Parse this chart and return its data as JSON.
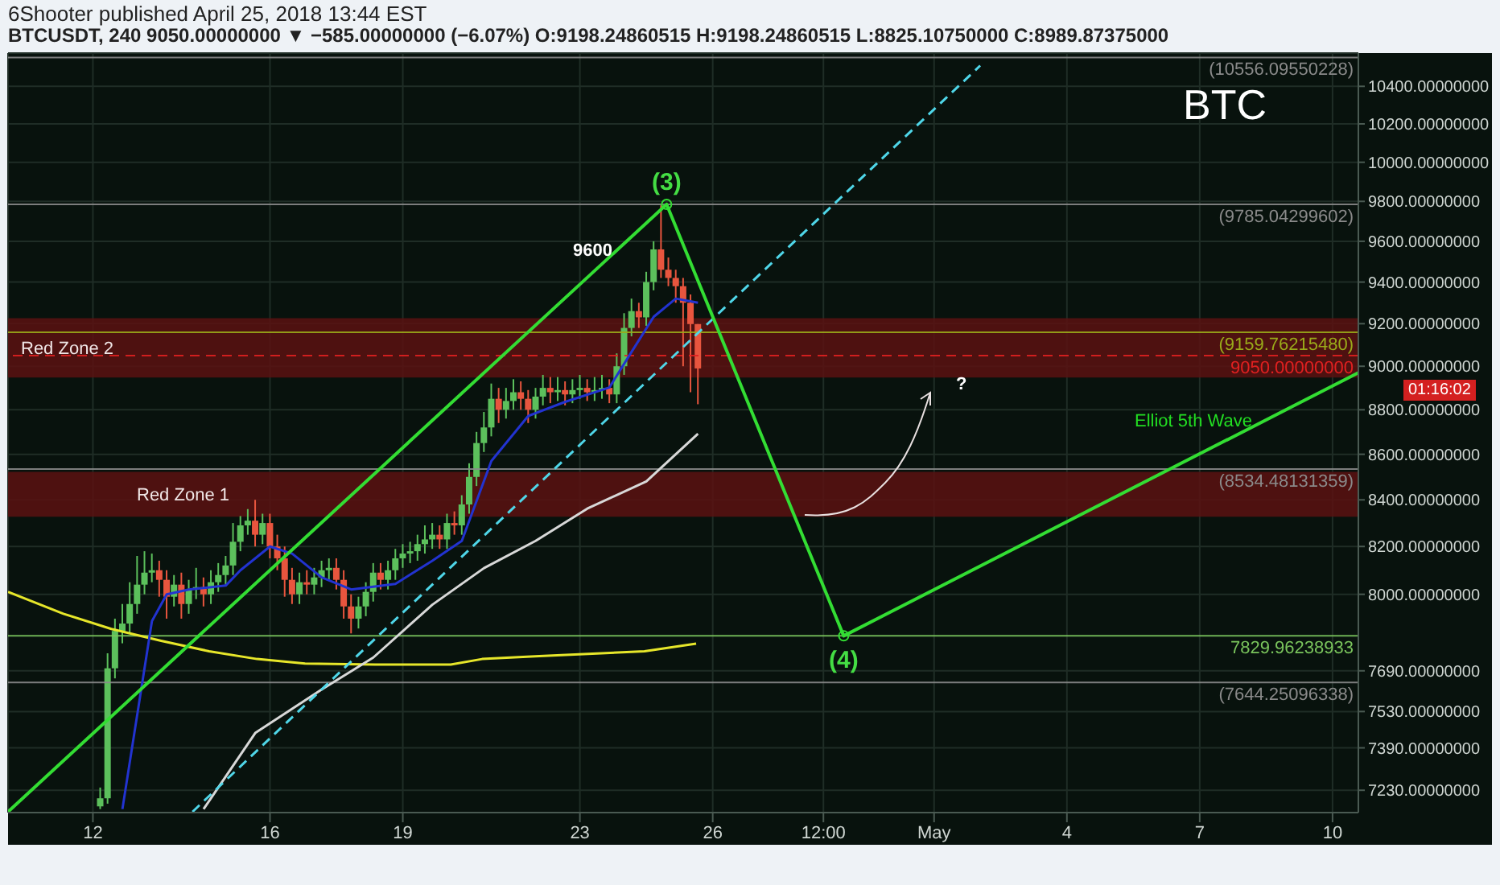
{
  "chart_data": {
    "type": "candlestick",
    "title": "6Shooter published April 25, 2018 13:44 EST",
    "subtitle": "BTCUSDT, 240 9050.00000000 ▼ −585.00000000 (−6.07%) O:9198.24860515 H:9198.24860515 L:8825.10750000 C:8989.87375000",
    "x": [
      "2018-04-12T04:00",
      "2018-04-12T08:00",
      "2018-04-12T12:00",
      "2018-04-12T16:00",
      "2018-04-12T20:00",
      "2018-04-13T00:00",
      "2018-04-13T04:00",
      "2018-04-13T08:00",
      "2018-04-13T12:00",
      "2018-04-13T16:00",
      "2018-04-13T20:00",
      "2018-04-14T00:00",
      "2018-04-14T04:00",
      "2018-04-14T08:00",
      "2018-04-14T12:00",
      "2018-04-14T16:00",
      "2018-04-14T20:00",
      "2018-04-15T00:00",
      "2018-04-15T04:00",
      "2018-04-15T08:00",
      "2018-04-15T12:00",
      "2018-04-15T16:00",
      "2018-04-15T20:00",
      "2018-04-16T00:00",
      "2018-04-16T04:00",
      "2018-04-16T08:00",
      "2018-04-16T12:00",
      "2018-04-16T16:00",
      "2018-04-16T20:00",
      "2018-04-17T00:00",
      "2018-04-17T04:00",
      "2018-04-17T08:00",
      "2018-04-17T12:00",
      "2018-04-17T16:00",
      "2018-04-17T20:00",
      "2018-04-18T00:00",
      "2018-04-18T04:00",
      "2018-04-18T08:00",
      "2018-04-18T12:00",
      "2018-04-18T16:00",
      "2018-04-18T20:00",
      "2018-04-19T00:00",
      "2018-04-19T04:00",
      "2018-04-19T08:00",
      "2018-04-19T12:00",
      "2018-04-19T16:00",
      "2018-04-19T20:00",
      "2018-04-20T00:00",
      "2018-04-20T04:00",
      "2018-04-20T08:00",
      "2018-04-20T12:00",
      "2018-04-20T16:00",
      "2018-04-20T20:00",
      "2018-04-21T00:00",
      "2018-04-21T04:00",
      "2018-04-21T08:00",
      "2018-04-21T12:00",
      "2018-04-21T16:00",
      "2018-04-21T20:00",
      "2018-04-22T00:00",
      "2018-04-22T04:00",
      "2018-04-22T08:00",
      "2018-04-22T12:00",
      "2018-04-22T16:00",
      "2018-04-22T20:00",
      "2018-04-23T00:00",
      "2018-04-23T04:00",
      "2018-04-23T08:00",
      "2018-04-23T12:00",
      "2018-04-23T16:00",
      "2018-04-23T20:00",
      "2018-04-24T00:00",
      "2018-04-24T04:00",
      "2018-04-24T08:00",
      "2018-04-24T12:00",
      "2018-04-24T16:00",
      "2018-04-24T20:00",
      "2018-04-25T00:00",
      "2018-04-25T04:00",
      "2018-04-25T08:00",
      "2018-04-25T12:00",
      "2018-04-25T16:00"
    ],
    "ohlc": [
      [
        7170,
        7240,
        7160,
        7200
      ],
      [
        7200,
        7760,
        7180,
        7700
      ],
      [
        7700,
        7900,
        7660,
        7850
      ],
      [
        7850,
        7960,
        7800,
        7880
      ],
      [
        7880,
        8050,
        7840,
        7960
      ],
      [
        7960,
        8160,
        7920,
        8040
      ],
      [
        8040,
        8180,
        8000,
        8090
      ],
      [
        8090,
        8170,
        8050,
        8100
      ],
      [
        8100,
        8140,
        7990,
        8060
      ],
      [
        8060,
        8100,
        7900,
        7990
      ],
      [
        7990,
        8080,
        7950,
        8040
      ],
      [
        8040,
        8090,
        7900,
        7960
      ],
      [
        7960,
        8060,
        7920,
        8020
      ],
      [
        8020,
        8110,
        7980,
        8030
      ],
      [
        8030,
        8070,
        7950,
        8000
      ],
      [
        8000,
        8100,
        7960,
        8050
      ],
      [
        8050,
        8130,
        8010,
        8080
      ],
      [
        8080,
        8160,
        8040,
        8120
      ],
      [
        8120,
        8300,
        8080,
        8220
      ],
      [
        8220,
        8330,
        8180,
        8290
      ],
      [
        8290,
        8360,
        8250,
        8310
      ],
      [
        8310,
        8400,
        8200,
        8250
      ],
      [
        8250,
        8340,
        8210,
        8300
      ],
      [
        8300,
        8340,
        8150,
        8200
      ],
      [
        8200,
        8250,
        8100,
        8150
      ],
      [
        8150,
        8200,
        7990,
        8060
      ],
      [
        8060,
        8110,
        7960,
        8000
      ],
      [
        8000,
        8090,
        7960,
        8050
      ],
      [
        8050,
        8100,
        8000,
        8040
      ],
      [
        8040,
        8110,
        8000,
        8070
      ],
      [
        8070,
        8140,
        8030,
        8100
      ],
      [
        8100,
        8150,
        8060,
        8110
      ],
      [
        8110,
        8150,
        8020,
        8060
      ],
      [
        8060,
        8100,
        7900,
        7950
      ],
      [
        7950,
        8000,
        7840,
        7900
      ],
      [
        7900,
        7990,
        7860,
        7950
      ],
      [
        7950,
        8050,
        7910,
        8010
      ],
      [
        8010,
        8130,
        7970,
        8090
      ],
      [
        8090,
        8130,
        8020,
        8060
      ],
      [
        8060,
        8140,
        8020,
        8100
      ],
      [
        8100,
        8190,
        8060,
        8150
      ],
      [
        8150,
        8210,
        8110,
        8170
      ],
      [
        8170,
        8220,
        8130,
        8180
      ],
      [
        8180,
        8250,
        8140,
        8210
      ],
      [
        8210,
        8290,
        8170,
        8230
      ],
      [
        8230,
        8300,
        8190,
        8250
      ],
      [
        8250,
        8290,
        8190,
        8230
      ],
      [
        8230,
        8340,
        8190,
        8300
      ],
      [
        8300,
        8350,
        8250,
        8290
      ],
      [
        8290,
        8420,
        8250,
        8380
      ],
      [
        8380,
        8560,
        8340,
        8500
      ],
      [
        8500,
        8700,
        8460,
        8650
      ],
      [
        8650,
        8790,
        8610,
        8720
      ],
      [
        8720,
        8920,
        8680,
        8850
      ],
      [
        8850,
        8900,
        8740,
        8800
      ],
      [
        8800,
        8900,
        8760,
        8840
      ],
      [
        8840,
        8940,
        8800,
        8880
      ],
      [
        8880,
        8930,
        8800,
        8850
      ],
      [
        8850,
        8890,
        8740,
        8800
      ],
      [
        8800,
        8900,
        8760,
        8860
      ],
      [
        8860,
        8960,
        8820,
        8900
      ],
      [
        8900,
        8950,
        8830,
        8880
      ],
      [
        8880,
        8950,
        8840,
        8890
      ],
      [
        8890,
        8930,
        8820,
        8870
      ],
      [
        8870,
        8940,
        8830,
        8890
      ],
      [
        8890,
        8960,
        8850,
        8900
      ],
      [
        8900,
        8940,
        8840,
        8880
      ],
      [
        8880,
        8950,
        8840,
        8890
      ],
      [
        8890,
        8960,
        8850,
        8900
      ],
      [
        8900,
        8940,
        8830,
        8870
      ],
      [
        8870,
        9060,
        8830,
        9000
      ],
      [
        9000,
        9250,
        8960,
        9180
      ],
      [
        9180,
        9320,
        9140,
        9260
      ],
      [
        9260,
        9300,
        9180,
        9230
      ],
      [
        9230,
        9450,
        9190,
        9400
      ],
      [
        9400,
        9600,
        9360,
        9560
      ],
      [
        9560,
        9780,
        9420,
        9460
      ],
      [
        9460,
        9520,
        9380,
        9420
      ],
      [
        9420,
        9460,
        9300,
        9380
      ],
      [
        9380,
        9420,
        9000,
        9300
      ],
      [
        9300,
        9340,
        8880,
        9198.25
      ],
      [
        9198.24860515,
        9198.24860515,
        8825.1075,
        8989.87375
      ]
    ],
    "colors": [
      "#5cc05c",
      "#5cc05c",
      "#5cc05c",
      "#5cc05c",
      "#5cc05c",
      "#5cc05c",
      "#5cc05c",
      "#5cc05c",
      "#e8553e",
      "#e8553e",
      "#5cc05c",
      "#e8553e",
      "#5cc05c",
      "#5cc05c",
      "#e8553e",
      "#5cc05c",
      "#5cc05c",
      "#5cc05c",
      "#5cc05c",
      "#5cc05c",
      "#5cc05c",
      "#e8553e",
      "#5cc05c",
      "#e8553e",
      "#e8553e",
      "#e8553e",
      "#e8553e",
      "#5cc05c",
      "#e8553e",
      "#5cc05c",
      "#5cc05c",
      "#5cc05c",
      "#e8553e",
      "#e8553e",
      "#e8553e",
      "#5cc05c",
      "#5cc05c",
      "#5cc05c",
      "#e8553e",
      "#5cc05c",
      "#5cc05c",
      "#5cc05c",
      "#5cc05c",
      "#5cc05c",
      "#5cc05c",
      "#5cc05c",
      "#e8553e",
      "#5cc05c",
      "#e8553e",
      "#5cc05c",
      "#5cc05c",
      "#5cc05c",
      "#5cc05c",
      "#5cc05c",
      "#e8553e",
      "#5cc05c",
      "#5cc05c",
      "#e8553e",
      "#e8553e",
      "#5cc05c",
      "#5cc05c",
      "#e8553e",
      "#5cc05c",
      "#e8553e",
      "#5cc05c",
      "#5cc05c",
      "#e8553e",
      "#5cc05c",
      "#5cc05c",
      "#e8553e",
      "#5cc05c",
      "#5cc05c",
      "#5cc05c",
      "#e8553e",
      "#5cc05c",
      "#5cc05c",
      "#e8553e",
      "#e8553e",
      "#e8553e",
      "#e8553e",
      "#e8553e",
      "#e8553e"
    ],
    "series": [
      {
        "type": "line",
        "color": "#e6e62a",
        "x": [
          "2018-04-10T02:00",
          "2018-04-11T08:00",
          "2018-04-12T10:00",
          "2018-04-13T13:00",
          "2018-04-14T15:00",
          "2018-04-15T17:00",
          "2018-04-16T19:00",
          "2018-04-18T09:00",
          "2018-04-20T02:00",
          "2018-04-20T19:00",
          "2018-04-22T02:00",
          "2018-04-24T11:00",
          "2018-04-25T15:00"
        ],
        "values": [
          8010,
          7920,
          7858,
          7810,
          7768,
          7737,
          7719,
          7715,
          7715,
          7737,
          7749,
          7768,
          7799
        ]
      },
      {
        "type": "line",
        "color": "#d8d8d8",
        "x": [
          "2018-04-14T12:00",
          "2018-04-15T16:00",
          "2018-04-17T04:00",
          "2018-04-18T08:00",
          "2018-04-19T16:00",
          "2018-04-20T20:00",
          "2018-04-22T00:00",
          "2018-04-23T04:00",
          "2018-04-24T12:00",
          "2018-04-25T16:00"
        ],
        "values": [
          7160,
          7447,
          7616,
          7743,
          7957,
          8109,
          8224,
          8362,
          8480,
          8692
        ]
      },
      {
        "type": "line",
        "color": "#2233d0",
        "x": [
          "2018-04-12T16:00",
          "2018-04-13T08:00",
          "2018-04-13T16:00",
          "2018-04-14T04:00",
          "2018-04-15T00:00",
          "2018-04-15T08:00",
          "2018-04-16T00:00",
          "2018-04-16T12:00",
          "2018-04-17T04:00",
          "2018-04-17T20:00",
          "2018-04-18T20:00",
          "2018-04-19T16:00",
          "2018-04-20T08:00",
          "2018-04-21T00:00",
          "2018-04-21T20:00",
          "2018-04-22T16:00",
          "2018-04-23T16:00",
          "2018-04-24T04:00",
          "2018-04-24T16:00",
          "2018-04-25T04:00",
          "2018-04-25T16:00"
        ],
        "values": [
          7160,
          7890,
          8000,
          8020,
          8036,
          8100,
          8200,
          8170,
          8070,
          8020,
          8043,
          8140,
          8224,
          8570,
          8772,
          8836,
          8902,
          9067,
          9233,
          9320,
          9300
        ]
      },
      {
        "type": "line",
        "color": "#4fd6e8",
        "line_style": "dashed",
        "x": [
          "2018-04-14T06:00",
          "2018-05-02T01:00"
        ],
        "values": [
          7150,
          10512
        ]
      },
      {
        "type": "line",
        "color": "#33dd33",
        "x": [
          "2018-04-10T02:00",
          "2018-04-24T23:00",
          "2018-04-28T23:00",
          "2018-05-10T14:00"
        ],
        "values": [
          7150,
          9785.04299602,
          7829.96238933,
          8970
        ]
      }
    ],
    "bands": [
      {
        "axis": "y",
        "from": 8948,
        "to": 9226,
        "label": "Red Zone 2",
        "color": "#5a1212"
      },
      {
        "axis": "y",
        "from": 8327,
        "to": 8522,
        "label": "Red Zone 1",
        "color": "#5a1212"
      }
    ],
    "ref_lines": [
      {
        "axis": "y",
        "value": 10556.09550228,
        "label": "(10556.09550228)",
        "color": "#8a8a8a"
      },
      {
        "axis": "y",
        "value": 9785.04299602,
        "label": "(9785.04299602)",
        "color": "#8a8a8a"
      },
      {
        "axis": "y",
        "value": 9159.7621548,
        "label": "(9159.76215480)",
        "color": "#9aaa1a"
      },
      {
        "axis": "y",
        "value": 9050,
        "label": "9050.00000000",
        "color": "#e02020",
        "line_style": "dashed"
      },
      {
        "axis": "y",
        "value": 8534.48131359,
        "label": "(8534.48131359)",
        "color": "#8a8a8a"
      },
      {
        "axis": "y",
        "value": 7829.96238933,
        "label": "7829.96238933",
        "color": "#7ac45c"
      },
      {
        "axis": "y",
        "value": 7644.25096338,
        "label": "(7644.25096338)",
        "color": "#8a8a8a"
      }
    ],
    "annotations": [
      {
        "text": "(3)",
        "x": "2018-04-24T23:00",
        "y": 9785.04299602
      },
      {
        "text": "(4)",
        "x": "2018-04-28T23:00",
        "y": 7829.96238933
      },
      "9600",
      "?",
      "Elliot 5th Wave",
      "BTC",
      "01:16:02"
    ],
    "log": true,
    "grid": true,
    "xlim": [
      "2018-04-10T02:00",
      "2018-05-10T14:00"
    ],
    "xticks": [
      {
        "value": "2018-04-12",
        "label": "12"
      },
      {
        "value": "2018-04-16",
        "label": "16"
      },
      {
        "value": "2018-04-19",
        "label": "19"
      },
      {
        "value": "2018-04-23",
        "label": "23"
      },
      {
        "value": "2018-04-26",
        "label": "26"
      },
      {
        "value": "2018-04-28T12:00",
        "label": "12:00"
      },
      {
        "value": "2018-05-01",
        "label": "May"
      },
      {
        "value": "2018-05-04",
        "label": "4"
      },
      {
        "value": "2018-05-07",
        "label": "7"
      },
      {
        "value": "2018-05-10",
        "label": "10"
      }
    ],
    "ylim": [
      7147,
      10580
    ],
    "yticks": [
      {
        "value": 7230,
        "label": "7230.00000000"
      },
      {
        "value": 7390,
        "label": "7390.00000000"
      },
      {
        "value": 7530,
        "label": "7530.00000000"
      },
      {
        "value": 7690,
        "label": "7690.00000000"
      },
      {
        "value": 8000,
        "label": "8000.00000000"
      },
      {
        "value": 8200,
        "label": "8200.00000000"
      },
      {
        "value": 8400,
        "label": "8400.00000000"
      },
      {
        "value": 8600,
        "label": "8600.00000000"
      },
      {
        "value": 8800,
        "label": "8800.00000000"
      },
      {
        "value": 9000,
        "label": "9000.00000000"
      },
      {
        "value": 9200,
        "label": "9200.00000000"
      },
      {
        "value": 9400,
        "label": "9400.00000000"
      },
      {
        "value": 9600,
        "label": "9600.00000000"
      },
      {
        "value": 9800,
        "label": "9800.00000000"
      },
      {
        "value": 10000,
        "label": "10000.00000000"
      },
      {
        "value": 10200,
        "label": "10200.00000000"
      },
      {
        "value": 10400,
        "label": "10400.00000000"
      }
    ]
  }
}
